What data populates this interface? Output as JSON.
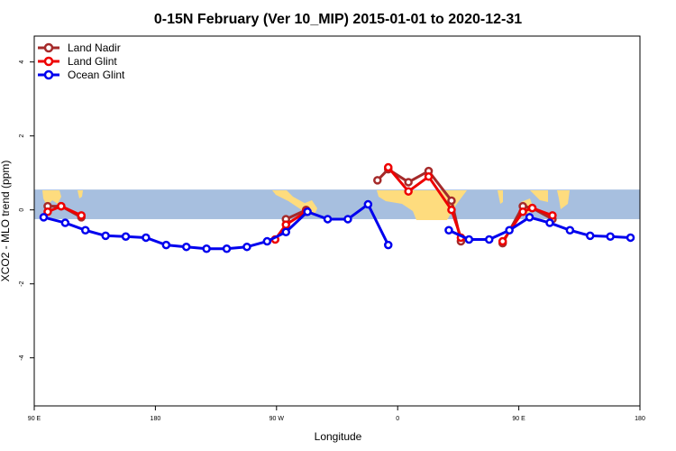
{
  "chart_data": {
    "type": "line",
    "title": "0-15N February (Ver 10_MIP)   2015-01-01 to 2020-12-31",
    "xlabel": "Longitude",
    "ylabel": "XCO2 - MLO trend (ppm)",
    "x_tick_values": [
      90,
      180,
      270,
      360,
      450,
      540
    ],
    "x_tick_labels": [
      "90 E",
      "180",
      "90 W",
      "0",
      "90 E",
      "180"
    ],
    "y_tick_values": [
      4,
      2,
      0,
      -2,
      -4
    ],
    "y_tick_labels": [
      "4",
      "2",
      "0",
      "-2",
      "-4"
    ],
    "xlim": [
      90,
      540
    ],
    "ylim": [
      -5.3,
      4.7
    ],
    "band": {
      "ymin": -0.25,
      "ymax": 0.55,
      "color": "#a7bfdf"
    },
    "land_color": "#fedc7e",
    "grid": false,
    "legend_position": "top-left",
    "series": [
      {
        "name": "Land Nadir",
        "color": "#a52a2a",
        "segments": [
          [
            [
              100,
              0.1
            ],
            [
              110,
              0.1
            ],
            [
              125,
              -0.2
            ]
          ],
          [
            [
              277,
              -0.25
            ],
            [
              292,
              0.0
            ]
          ],
          [
            [
              345,
              0.8
            ],
            [
              353,
              1.1
            ],
            [
              368,
              0.75
            ],
            [
              383,
              1.05
            ],
            [
              400,
              0.25
            ],
            [
              407,
              -0.85
            ]
          ],
          [
            [
              438,
              -0.9
            ],
            [
              453,
              0.1
            ],
            [
              460,
              0.05
            ],
            [
              475,
              -0.25
            ]
          ]
        ]
      },
      {
        "name": "Land Glint",
        "color": "#ee0000",
        "segments": [
          [
            [
              100,
              -0.05
            ],
            [
              110,
              0.1
            ],
            [
              125,
              -0.15
            ]
          ],
          [
            [
              269,
              -0.8
            ],
            [
              277,
              -0.4
            ],
            [
              292,
              -0.05
            ]
          ],
          [
            [
              353,
              1.15
            ],
            [
              368,
              0.5
            ],
            [
              383,
              0.9
            ],
            [
              400,
              0.0
            ],
            [
              407,
              -0.75
            ]
          ],
          [
            [
              438,
              -0.85
            ],
            [
              453,
              -0.05
            ],
            [
              460,
              0.05
            ],
            [
              475,
              -0.15
            ]
          ]
        ]
      },
      {
        "name": "Ocean Glint",
        "color": "#0000ee",
        "segments": [
          [
            [
              97,
              -0.2
            ],
            [
              113,
              -0.35
            ],
            [
              128,
              -0.55
            ],
            [
              143,
              -0.7
            ],
            [
              158,
              -0.72
            ],
            [
              173,
              -0.75
            ],
            [
              188,
              -0.95
            ],
            [
              203,
              -1.0
            ],
            [
              218,
              -1.05
            ],
            [
              233,
              -1.05
            ],
            [
              248,
              -1.0
            ],
            [
              263,
              -0.85
            ],
            [
              277,
              -0.6
            ],
            [
              293,
              -0.05
            ],
            [
              308,
              -0.25
            ],
            [
              323,
              -0.25
            ],
            [
              338,
              0.15
            ],
            [
              353,
              -0.95
            ]
          ],
          [
            [
              398,
              -0.55
            ],
            [
              413,
              -0.8
            ],
            [
              428,
              -0.8
            ],
            [
              443,
              -0.55
            ],
            [
              458,
              -0.2
            ],
            [
              473,
              -0.35
            ],
            [
              488,
              -0.55
            ],
            [
              503,
              -0.7
            ],
            [
              518,
              -0.72
            ],
            [
              533,
              -0.75
            ]
          ]
        ]
      }
    ]
  }
}
